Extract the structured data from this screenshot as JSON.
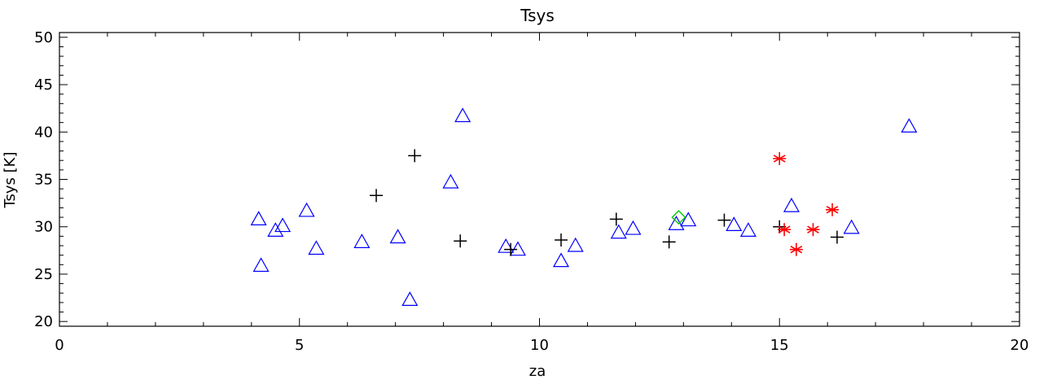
{
  "chart_data": {
    "type": "scatter",
    "title": "Tsys",
    "xlabel": "za",
    "ylabel": "Tsys [K]",
    "xlim": [
      0,
      20
    ],
    "ylim": [
      19.5,
      50.5
    ],
    "x_ticks": [
      0,
      5,
      10,
      15,
      20
    ],
    "y_ticks": [
      20,
      25,
      30,
      35,
      40,
      45,
      50
    ],
    "grid": false,
    "series": [
      {
        "marker": "triangle",
        "color": "#0000ff",
        "points": [
          [
            4.15,
            30.8
          ],
          [
            4.2,
            25.9
          ],
          [
            4.5,
            29.6
          ],
          [
            4.65,
            30.1
          ],
          [
            5.15,
            31.7
          ],
          [
            5.35,
            27.7
          ],
          [
            6.3,
            28.4
          ],
          [
            7.05,
            28.9
          ],
          [
            7.3,
            22.3
          ],
          [
            8.15,
            34.7
          ],
          [
            8.4,
            41.7
          ],
          [
            9.3,
            27.9
          ],
          [
            9.55,
            27.6
          ],
          [
            10.45,
            26.4
          ],
          [
            10.75,
            28.0
          ],
          [
            11.65,
            29.4
          ],
          [
            11.95,
            29.8
          ],
          [
            12.85,
            30.3
          ],
          [
            13.1,
            30.7
          ],
          [
            14.05,
            30.2
          ],
          [
            14.35,
            29.6
          ],
          [
            15.25,
            32.2
          ],
          [
            16.5,
            29.9
          ],
          [
            17.7,
            40.6
          ]
        ]
      },
      {
        "marker": "plus",
        "color": "#000000",
        "points": [
          [
            6.6,
            33.3
          ],
          [
            7.4,
            37.5
          ],
          [
            8.35,
            28.5
          ],
          [
            9.4,
            27.6
          ],
          [
            10.45,
            28.6
          ],
          [
            11.6,
            30.8
          ],
          [
            12.7,
            28.4
          ],
          [
            13.85,
            30.7
          ],
          [
            15.0,
            30.0
          ],
          [
            16.2,
            28.9
          ]
        ]
      },
      {
        "marker": "asterisk",
        "color": "#ff0000",
        "points": [
          [
            15.0,
            37.2
          ],
          [
            15.1,
            29.7
          ],
          [
            15.35,
            27.6
          ],
          [
            15.7,
            29.7
          ],
          [
            16.1,
            31.8
          ]
        ]
      },
      {
        "marker": "diamond",
        "color": "#00cc00",
        "points": [
          [
            12.9,
            31.0
          ]
        ]
      }
    ]
  }
}
